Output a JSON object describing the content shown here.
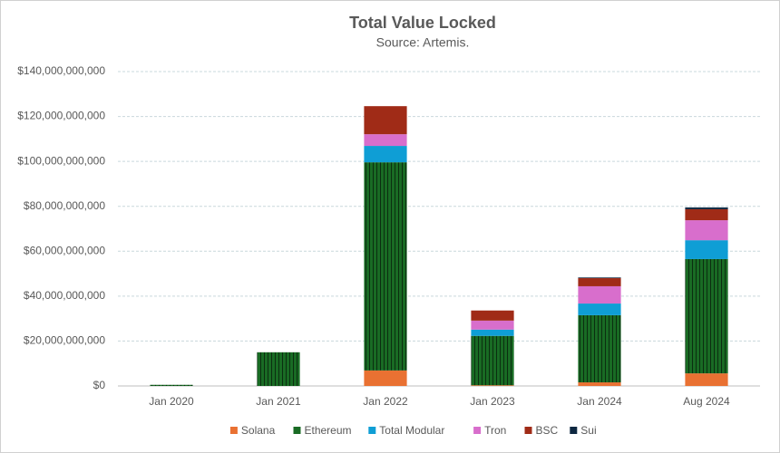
{
  "chart_data": {
    "type": "stacked_bar",
    "title": "Total Value Locked",
    "subtitle": "Source: Artemis.",
    "categories": [
      "Jan 2020",
      "Jan 2021",
      "Jan 2022",
      "Jan 2023",
      "Jan 2024",
      "Aug 2024"
    ],
    "series": [
      {
        "name": "Solana",
        "color": "#e97132",
        "values": [
          0,
          0,
          6900000000,
          300000000,
          1600000000,
          5600000000
        ]
      },
      {
        "name": "Ethereum",
        "color": "#196b24",
        "values": [
          500000000,
          15000000000,
          92700000000,
          22000000000,
          29900000000,
          50900000000
        ]
      },
      {
        "name": "Total Modular",
        "color": "#0f9ed5",
        "values": [
          0,
          0,
          7300000000,
          2800000000,
          5200000000,
          8400000000
        ]
      },
      {
        "name": "Tron",
        "color": "#d86ecc",
        "values": [
          0,
          0,
          5200000000,
          4000000000,
          7700000000,
          8900000000
        ]
      },
      {
        "name": "BSC",
        "color": "#a02b17",
        "values": [
          0,
          0,
          12500000000,
          4500000000,
          3600000000,
          4900000000
        ]
      },
      {
        "name": "Sui",
        "color": "#0e2841",
        "values": [
          0,
          0,
          0,
          0,
          300000000,
          800000000
        ]
      }
    ],
    "ylim": [
      0,
      140000000000
    ],
    "yticks": [
      {
        "value": 0,
        "label": "$0"
      },
      {
        "value": 20000000000,
        "label": "$20,000,000,000"
      },
      {
        "value": 40000000000,
        "label": "$40,000,000,000"
      },
      {
        "value": 60000000000,
        "label": "$60,000,000,000"
      },
      {
        "value": 80000000000,
        "label": "$80,000,000,000"
      },
      {
        "value": 100000000000,
        "label": "$100,000,000,000"
      },
      {
        "value": 120000000000,
        "label": "$120,000,000,000"
      },
      {
        "value": 140000000000,
        "label": "$140,000,000,000"
      }
    ],
    "grid": true,
    "legend": "bottom"
  }
}
